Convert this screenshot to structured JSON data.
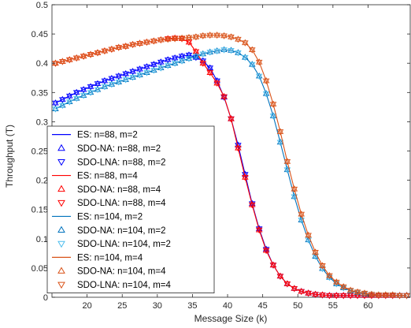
{
  "chart_data": {
    "type": "line",
    "title": "",
    "xlabel": "Message Size (k)",
    "ylabel": "Throughput (T)",
    "xlim": [
      15,
      66
    ],
    "ylim": [
      0,
      0.5
    ],
    "xticks": [
      20,
      25,
      30,
      35,
      40,
      45,
      50,
      55,
      60
    ],
    "yticks": [
      0,
      0.05,
      0.1,
      0.15,
      0.2,
      0.25,
      0.3,
      0.35,
      0.4,
      0.45,
      0.5
    ],
    "grid": false,
    "legend_position": "lower-left",
    "x": [
      15.5,
      16.5,
      17.5,
      18.5,
      19.5,
      20.5,
      21.5,
      22.5,
      23.5,
      24.5,
      25.5,
      26.5,
      27.5,
      28.5,
      29.5,
      30.5,
      31.5,
      32.5,
      33.5,
      34.5,
      35.5,
      36.5,
      37.5,
      38.5,
      39.5,
      40.5,
      41.5,
      42.5,
      43.5,
      44.5,
      45.5,
      46.5,
      47.5,
      48.5,
      49.5,
      50.5,
      51.5,
      52.5,
      53.5,
      54.5,
      55.5,
      56.5,
      57.5,
      58.5,
      59.5,
      60.5,
      61.5,
      62.5,
      63.5,
      64.5,
      65.5
    ],
    "curves": [
      {
        "color": "#0000ff",
        "values": [
          0.332,
          0.338,
          0.344,
          0.35,
          0.355,
          0.36,
          0.365,
          0.37,
          0.374,
          0.378,
          0.382,
          0.386,
          0.39,
          0.394,
          0.398,
          0.402,
          0.406,
          0.409,
          0.412,
          0.414,
          0.41,
          0.404,
          0.392,
          0.37,
          0.342,
          0.305,
          0.26,
          0.21,
          0.16,
          0.117,
          0.082,
          0.055,
          0.036,
          0.023,
          0.015,
          0.01,
          0.007,
          0.005,
          0.004,
          0.003,
          0.003,
          0.003,
          0.003,
          0.003,
          0.003,
          0.003,
          0.003,
          0.003,
          0.003,
          0.003,
          0.003
        ]
      },
      {
        "color": "#ff0000",
        "values": [
          0.4,
          0.403,
          0.406,
          0.409,
          0.412,
          0.415,
          0.418,
          0.421,
          0.424,
          0.427,
          0.429,
          0.432,
          0.434,
          0.436,
          0.438,
          0.44,
          0.442,
          0.443,
          0.442,
          0.436,
          0.42,
          0.4,
          0.384,
          0.366,
          0.343,
          0.305,
          0.255,
          0.205,
          0.158,
          0.115,
          0.08,
          0.055,
          0.036,
          0.023,
          0.015,
          0.01,
          0.007,
          0.005,
          0.004,
          0.003,
          0.003,
          0.003,
          0.003,
          0.003,
          0.003,
          0.003,
          0.003,
          0.003,
          0.003,
          0.003,
          0.003
        ]
      },
      {
        "color": "#0072bd",
        "values": [
          0.322,
          0.328,
          0.334,
          0.34,
          0.345,
          0.35,
          0.355,
          0.36,
          0.364,
          0.368,
          0.372,
          0.376,
          0.38,
          0.384,
          0.388,
          0.392,
          0.396,
          0.4,
          0.404,
          0.408,
          0.412,
          0.416,
          0.419,
          0.421,
          0.423,
          0.422,
          0.418,
          0.41,
          0.398,
          0.378,
          0.348,
          0.31,
          0.265,
          0.218,
          0.172,
          0.132,
          0.098,
          0.07,
          0.049,
          0.034,
          0.023,
          0.016,
          0.011,
          0.008,
          0.006,
          0.005,
          0.004,
          0.004,
          0.004,
          0.003,
          0.003
        ]
      },
      {
        "color": "#d95319",
        "values": [
          0.4,
          0.403,
          0.406,
          0.409,
          0.412,
          0.415,
          0.418,
          0.421,
          0.424,
          0.427,
          0.429,
          0.432,
          0.434,
          0.436,
          0.438,
          0.44,
          0.441,
          0.442,
          0.443,
          0.444,
          0.445,
          0.447,
          0.448,
          0.448,
          0.447,
          0.445,
          0.441,
          0.435,
          0.423,
          0.402,
          0.37,
          0.33,
          0.283,
          0.232,
          0.185,
          0.142,
          0.106,
          0.077,
          0.054,
          0.037,
          0.026,
          0.018,
          0.012,
          0.009,
          0.007,
          0.005,
          0.004,
          0.004,
          0.004,
          0.003,
          0.003
        ]
      }
    ],
    "series": [
      {
        "name": "ES: n=88, m=2",
        "style": "line",
        "color": "#0000ff",
        "curve": 0
      },
      {
        "name": "SDO-NA: n=88, m=2",
        "style": "triangle-up",
        "color": "#0000ff",
        "curve": 0
      },
      {
        "name": "SDO-LNA: n=88, m=2",
        "style": "triangle-down",
        "color": "#0000ff",
        "curve": 0
      },
      {
        "name": "ES: n=88, m=4",
        "style": "line",
        "color": "#ff0000",
        "curve": 1
      },
      {
        "name": "SDO-NA: n=88, m=4",
        "style": "triangle-up",
        "color": "#ff0000",
        "curve": 1
      },
      {
        "name": "SDO-LNA: n=88, m=4",
        "style": "triangle-down",
        "color": "#ff0000",
        "curve": 1
      },
      {
        "name": "ES: n=104, m=2",
        "style": "line",
        "color": "#0072bd",
        "curve": 2
      },
      {
        "name": "SDO-NA: n=104, m=2",
        "style": "triangle-up",
        "color": "#0072bd",
        "curve": 2
      },
      {
        "name": "SDO-LNA: n=104, m=2",
        "style": "triangle-down",
        "color": "#4dbeee",
        "curve": 2
      },
      {
        "name": "ES: n=104, m=4",
        "style": "line",
        "color": "#d95319",
        "curve": 3
      },
      {
        "name": "SDO-NA: n=104, m=4",
        "style": "triangle-up",
        "color": "#d95319",
        "curve": 3
      },
      {
        "name": "SDO-LNA: n=104, m=4",
        "style": "triangle-down",
        "color": "#d95319",
        "curve": 3
      }
    ]
  }
}
